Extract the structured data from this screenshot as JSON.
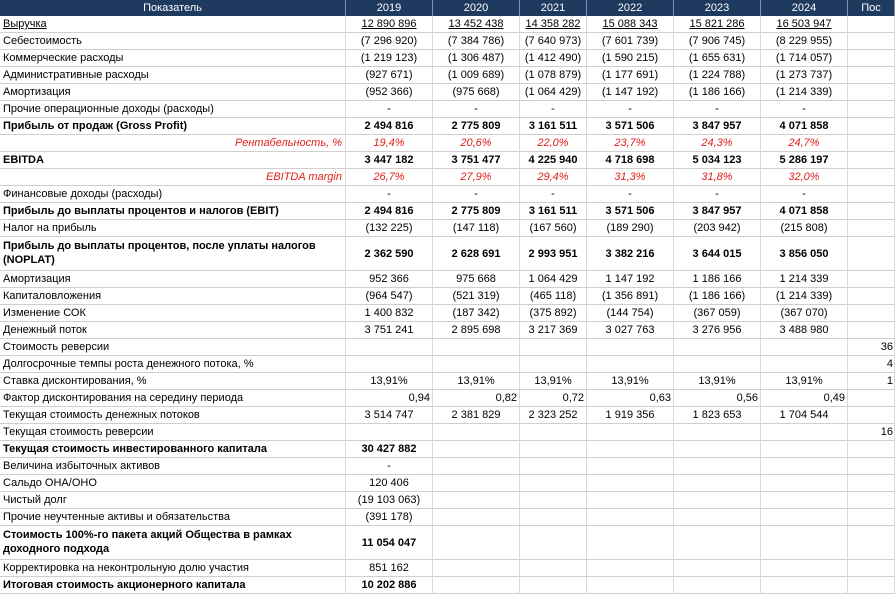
{
  "header": [
    "Показатель",
    "2019",
    "2020",
    "2021",
    "2022",
    "2023",
    "2024",
    "Пос"
  ],
  "rows": [
    {
      "label": "Выручка",
      "values": [
        "12 890 896",
        "13 452 438",
        "14 358 282",
        "15 088 343",
        "15 821 286",
        "16 503 947",
        ""
      ],
      "style": "uline"
    },
    {
      "label": "Себестоимость",
      "values": [
        "(7 296 920)",
        "(7 384 786)",
        "(7 640 973)",
        "(7 601 739)",
        "(7 906 745)",
        "(8 229 955)",
        ""
      ]
    },
    {
      "label": "Коммерческие расходы",
      "values": [
        "(1 219 123)",
        "(1 306 487)",
        "(1 412 490)",
        "(1 590 215)",
        "(1 655 631)",
        "(1 714 057)",
        ""
      ]
    },
    {
      "label": "Административные расходы",
      "values": [
        "(927 671)",
        "(1 009 689)",
        "(1 078 879)",
        "(1 177 691)",
        "(1 224 788)",
        "(1 273 737)",
        ""
      ]
    },
    {
      "label": "Амортизация",
      "values": [
        "(952 366)",
        "(975 668)",
        "(1 064 429)",
        "(1 147 192)",
        "(1 186 166)",
        "(1 214 339)",
        ""
      ]
    },
    {
      "label": "Прочие операционные доходы (расходы)",
      "values": [
        "-",
        "-",
        "-",
        "-",
        "-",
        "-",
        ""
      ]
    },
    {
      "label": "Прибыль от продаж (Gross Profit)",
      "values": [
        "2 494 816",
        "2 775 809",
        "3 161 511",
        "3 571 506",
        "3 847 957",
        "4 071 858",
        ""
      ],
      "style": "bold"
    },
    {
      "label": "Рентабельность, %",
      "values": [
        "19,4%",
        "20,6%",
        "22,0%",
        "23,7%",
        "24,3%",
        "24,7%",
        ""
      ],
      "style": "red"
    },
    {
      "label": "EBITDA",
      "values": [
        "3 447 182",
        "3 751 477",
        "4 225 940",
        "4 718 698",
        "5 034 123",
        "5 286 197",
        ""
      ],
      "style": "bold"
    },
    {
      "label": "EBITDA margin",
      "values": [
        "26,7%",
        "27,9%",
        "29,4%",
        "31,3%",
        "31,8%",
        "32,0%",
        ""
      ],
      "style": "red"
    },
    {
      "label": "Финансовые доходы (расходы)",
      "values": [
        "-",
        "-",
        "-",
        "-",
        "-",
        "-",
        ""
      ]
    },
    {
      "label": "Прибыль до выплаты процентов и налогов (EBIT)",
      "values": [
        "2 494 816",
        "2 775 809",
        "3 161 511",
        "3 571 506",
        "3 847 957",
        "4 071 858",
        ""
      ],
      "style": "bold"
    },
    {
      "label": "Налог на прибыль",
      "values": [
        "(132 225)",
        "(147 118)",
        "(167 560)",
        "(189 290)",
        "(203 942)",
        "(215 808)",
        ""
      ]
    },
    {
      "label": "Прибыль до выплаты процентов, после уплаты налогов (NOPLAT)",
      "values": [
        "2 362 590",
        "2 628 691",
        "2 993 951",
        "3 382 216",
        "3 644 015",
        "3 856 050",
        ""
      ],
      "style": "bold-tall"
    },
    {
      "label": "Амортизация",
      "values": [
        "952 366",
        "975 668",
        "1 064 429",
        "1 147 192",
        "1 186 166",
        "1 214 339",
        ""
      ]
    },
    {
      "label": "Капиталовложения",
      "values": [
        "(964 547)",
        "(521 319)",
        "(465 118)",
        "(1 356 891)",
        "(1 186 166)",
        "(1 214 339)",
        ""
      ]
    },
    {
      "label": "Изменение СОК",
      "values": [
        "1 400 832",
        "(187 342)",
        "(375 892)",
        "(144 754)",
        "(367 059)",
        "(367 070)",
        ""
      ]
    },
    {
      "label": "Денежный поток",
      "values": [
        "3 751 241",
        "2 895 698",
        "3 217 369",
        "3 027 763",
        "3 276 956",
        "3 488 980",
        ""
      ]
    },
    {
      "label": "Стоимость реверсии",
      "values": [
        "",
        "",
        "",
        "",
        "",
        "",
        "36"
      ]
    },
    {
      "label": "Долгосрочные темпы роста денежного потока, %",
      "values": [
        "",
        "",
        "",
        "",
        "",
        "",
        "4"
      ]
    },
    {
      "label": "Ставка дисконтирования, %",
      "values": [
        "13,91%",
        "13,91%",
        "13,91%",
        "13,91%",
        "13,91%",
        "13,91%",
        "1"
      ]
    },
    {
      "label": "Фактор дисконтирования на середину периода",
      "values": [
        "0,94",
        "0,82",
        "0,72",
        "0,63",
        "0,56",
        "0,49",
        ""
      ],
      "style": "right"
    },
    {
      "label": "Текущая стоимость денежных потоков",
      "values": [
        "3 514 747",
        "2 381 829",
        "2 323 252",
        "1 919 356",
        "1 823 653",
        "1 704 544",
        ""
      ]
    },
    {
      "label": "Текущая стоимость реверсии",
      "values": [
        "",
        "",
        "",
        "",
        "",
        "",
        "16"
      ]
    },
    {
      "label": "Текущая стоимость инвестированного капитала",
      "values": [
        "30 427 882",
        "",
        "",
        "",
        "",
        "",
        ""
      ],
      "style": "bold"
    },
    {
      "label": "Величина избыточных активов",
      "values": [
        "-",
        "",
        "",
        "",
        "",
        "",
        ""
      ]
    },
    {
      "label": "Сальдо ОНА/ОНО",
      "values": [
        "120 406",
        "",
        "",
        "",
        "",
        "",
        ""
      ]
    },
    {
      "label": "Чистый долг",
      "values": [
        "(19 103 063)",
        "",
        "",
        "",
        "",
        "",
        ""
      ]
    },
    {
      "label": "Прочие неучтенные активы и обязательства",
      "values": [
        "(391 178)",
        "",
        "",
        "",
        "",
        "",
        ""
      ]
    },
    {
      "label": "Стоимость 100%-го пакета акций Общества в рамках доходного подхода",
      "values": [
        "11 054 047",
        "",
        "",
        "",
        "",
        "",
        ""
      ],
      "style": "bold-tall"
    },
    {
      "label": "Корректировка на неконтрольную долю участия",
      "values": [
        "851 162",
        "",
        "",
        "",
        "",
        "",
        ""
      ]
    },
    {
      "label": "Итоговая стоимость акционерного капитала",
      "values": [
        "10 202 886",
        "",
        "",
        "",
        "",
        "",
        ""
      ],
      "style": "bold"
    }
  ]
}
